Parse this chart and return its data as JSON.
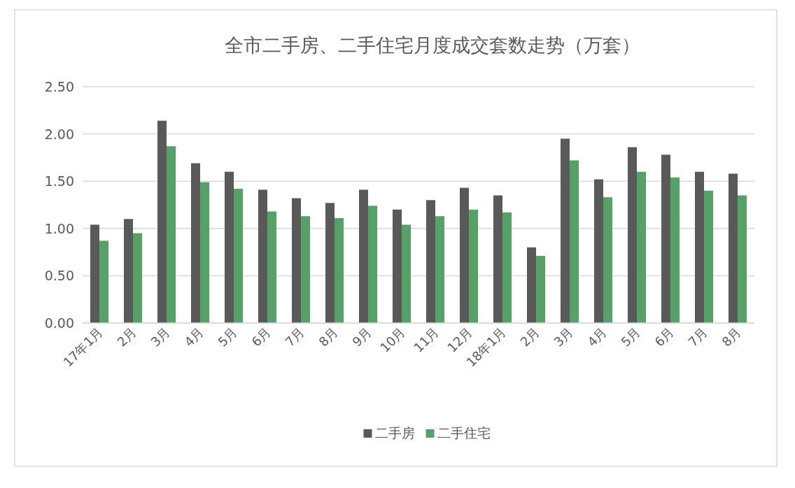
{
  "chart_data": {
    "type": "bar",
    "title": "全市二手房、二手住宅月度成交套数走势（万套）",
    "categories": [
      "17年1月",
      "2月",
      "3月",
      "4月",
      "5月",
      "6月",
      "7月",
      "8月",
      "9月",
      "10月",
      "11月",
      "12月",
      "18年1月",
      "2月",
      "3月",
      "4月",
      "5月",
      "6月",
      "7月",
      "8月"
    ],
    "series": [
      {
        "name": "二手房",
        "color": "#595959",
        "values": [
          1.04,
          1.1,
          2.14,
          1.69,
          1.6,
          1.41,
          1.32,
          1.27,
          1.41,
          1.2,
          1.3,
          1.43,
          1.35,
          0.8,
          1.95,
          1.52,
          1.86,
          1.78,
          1.6,
          1.58
        ]
      },
      {
        "name": "二手住宅",
        "color": "#5a9e6a",
        "values": [
          0.87,
          0.95,
          1.87,
          1.49,
          1.42,
          1.18,
          1.13,
          1.11,
          1.24,
          1.04,
          1.13,
          1.2,
          1.17,
          0.71,
          1.72,
          1.33,
          1.6,
          1.54,
          1.4,
          1.35
        ]
      }
    ],
    "ylim": [
      0,
      2.5
    ],
    "yticks": [
      {
        "value": 0,
        "label": "0.00"
      },
      {
        "value": 0.5,
        "label": "0.50"
      },
      {
        "value": 1,
        "label": "1.00"
      },
      {
        "value": 1.5,
        "label": "1.50"
      },
      {
        "value": 2,
        "label": "2.00"
      },
      {
        "value": 2.5,
        "label": "2.50"
      }
    ],
    "grid": "y",
    "legend": "bottom"
  }
}
